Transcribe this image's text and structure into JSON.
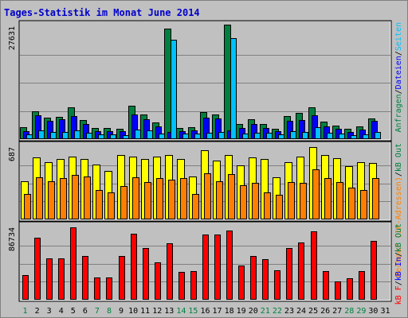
{
  "title": "Tages-Statistik im Monat June 2014",
  "colors": {
    "background": "#c0c0c0",
    "title": "#0000cc",
    "anfragen": "#008040",
    "dateien": "#0000ff",
    "seiten": "#00c0ff",
    "rechner": "#ffff00",
    "kbout": "#ff8000",
    "kbin": "#ff0000",
    "weekend_label": "#008040",
    "weekday_label": "#000000"
  },
  "chart_data": [
    {
      "type": "bar",
      "panel": "top",
      "y_max_label": "27631",
      "ylim": [
        0,
        27631
      ],
      "right_label_parts": [
        {
          "text": "Anfragen",
          "color": "#008040"
        },
        {
          "text": "/",
          "color": "#000000"
        },
        {
          "text": "Dateien",
          "color": "#0000ff"
        },
        {
          "text": "/",
          "color": "#000000"
        },
        {
          "text": "Seiten",
          "color": "#00c0ff"
        }
      ],
      "categories": [
        "1",
        "2",
        "3",
        "4",
        "5",
        "6",
        "7",
        "8",
        "9",
        "10",
        "11",
        "12",
        "13",
        "14",
        "15",
        "16",
        "17",
        "18",
        "19",
        "20",
        "21",
        "22",
        "23",
        "24",
        "25",
        "26",
        "27",
        "28",
        "29",
        "30",
        "31"
      ],
      "series": [
        {
          "name": "Anfragen",
          "values": [
            2900,
            6900,
            5200,
            5400,
            7700,
            4600,
            2800,
            2700,
            2600,
            8200,
            6100,
            4100,
            27000,
            2800,
            2900,
            6700,
            6100,
            28000,
            3600,
            4800,
            3700,
            2600,
            5700,
            6400,
            7700,
            4200,
            3400,
            2500,
            3200,
            5100,
            0
          ]
        },
        {
          "name": "Dateien",
          "values": [
            2000,
            5800,
            4400,
            4800,
            5600,
            3600,
            2000,
            2000,
            1900,
            6000,
            4900,
            3100,
            1800,
            2000,
            2100,
            5200,
            5100,
            2100,
            2800,
            3600,
            2700,
            1900,
            4400,
            4600,
            5800,
            3100,
            2500,
            1800,
            2400,
            4400,
            0
          ]
        },
        {
          "name": "Seiten",
          "values": [
            1100,
            2100,
            1700,
            1800,
            2100,
            1500,
            1100,
            1100,
            900,
            2400,
            2200,
            1300,
            24300,
            1400,
            1300,
            1500,
            1700,
            24800,
            1300,
            1600,
            1500,
            1200,
            1900,
            1700,
            2900,
            1600,
            1400,
            1000,
            1200,
            1700,
            0
          ]
        }
      ]
    },
    {
      "type": "bar",
      "panel": "middle",
      "y_max_label": "687",
      "ylim": [
        0,
        687
      ],
      "right_label_parts": [
        {
          "text": "Rechner (IP-Adressen)",
          "color": "#ff8000"
        },
        {
          "text": "/",
          "color": "#000000"
        },
        {
          "text": "kB Out",
          "color": "#008040"
        }
      ],
      "series": [
        {
          "name": "Rechner",
          "values": [
            360,
            592,
            544,
            573,
            599,
            570,
            520,
            457,
            610,
            599,
            576,
            599,
            611,
            576,
            410,
            657,
            555,
            614,
            510,
            588,
            572,
            401,
            546,
            597,
            687,
            608,
            582,
            509,
            546,
            534,
            0
          ]
        },
        {
          "name": "kB Out",
          "values": [
            240,
            400,
            360,
            390,
            421,
            408,
            282,
            255,
            314,
            400,
            353,
            393,
            378,
            392,
            241,
            441,
            365,
            432,
            326,
            351,
            259,
            232,
            355,
            346,
            479,
            391,
            357,
            300,
            281,
            389,
            0
          ]
        }
      ]
    },
    {
      "type": "bar",
      "panel": "bottom",
      "y_max_label": "86734",
      "ylim": [
        0,
        86734
      ],
      "right_label_parts": [
        {
          "text": "kB F",
          "color": "#ff0000"
        },
        {
          "text": "/",
          "color": "#000000"
        },
        {
          "text": "kB In",
          "color": "#0000ff"
        },
        {
          "text": "/",
          "color": "#000000"
        },
        {
          "text": "kB Out",
          "color": "#008040"
        }
      ],
      "series": [
        {
          "name": "kB F",
          "values": [
            29500,
            74000,
            50000,
            50000,
            86734,
            52000,
            26500,
            27000,
            52000,
            79000,
            62000,
            45000,
            68000,
            33000,
            34500,
            78000,
            78000,
            83000,
            41000,
            52000,
            49000,
            35500,
            62000,
            69000,
            82000,
            34000,
            22000,
            26000,
            34500,
            71000,
            0
          ]
        }
      ]
    }
  ],
  "x_axis": {
    "labels": [
      "1",
      "2",
      "3",
      "4",
      "5",
      "6",
      "7",
      "8",
      "9",
      "10",
      "11",
      "12",
      "13",
      "14",
      "15",
      "16",
      "17",
      "18",
      "19",
      "20",
      "21",
      "22",
      "23",
      "24",
      "25",
      "26",
      "27",
      "28",
      "29",
      "30",
      "31"
    ],
    "weekend_days": [
      1,
      7,
      8,
      14,
      15,
      21,
      22,
      28,
      29
    ]
  }
}
